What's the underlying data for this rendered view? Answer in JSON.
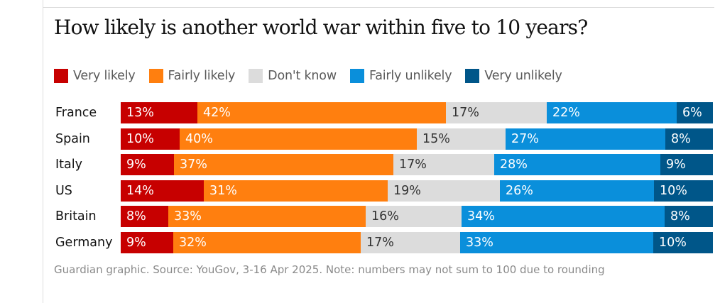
{
  "title": "How likely is another world war within five to 10 years?",
  "source": "Guardian graphic. Source: YouGov, 3-16 Apr 2025. Note: numbers may not sum to 100 due to rounding",
  "colors": {
    "very_likely": "#c70000",
    "fairly_likely": "#ff7f0f",
    "dont_know": "#dcdcdc",
    "fairly_unlikely": "#0a8fdb",
    "very_unlikely": "#005689"
  },
  "chart_data": {
    "type": "bar",
    "orientation": "horizontal",
    "stacked": true,
    "normalized": true,
    "title": "How likely is another world war within five to 10 years?",
    "categories": [
      "France",
      "Spain",
      "Italy",
      "US",
      "Britain",
      "Germany"
    ],
    "legend_position": "top-left",
    "series": [
      {
        "name": "Very likely",
        "color": "#c70000",
        "text_color": "#ffffff",
        "values": [
          13,
          10,
          9,
          14,
          8,
          9
        ]
      },
      {
        "name": "Fairly likely",
        "color": "#ff7f0f",
        "text_color": "#ffffff",
        "values": [
          42,
          40,
          37,
          31,
          33,
          32
        ]
      },
      {
        "name": "Don't know",
        "color": "#dcdcdc",
        "text_color": "#333333",
        "values": [
          17,
          15,
          17,
          19,
          16,
          17
        ]
      },
      {
        "name": "Fairly unlikely",
        "color": "#0a8fdb",
        "text_color": "#ffffff",
        "values": [
          22,
          27,
          28,
          26,
          34,
          33
        ]
      },
      {
        "name": "Very unlikely",
        "color": "#005689",
        "text_color": "#ffffff",
        "values": [
          6,
          8,
          9,
          10,
          8,
          10
        ]
      }
    ]
  }
}
